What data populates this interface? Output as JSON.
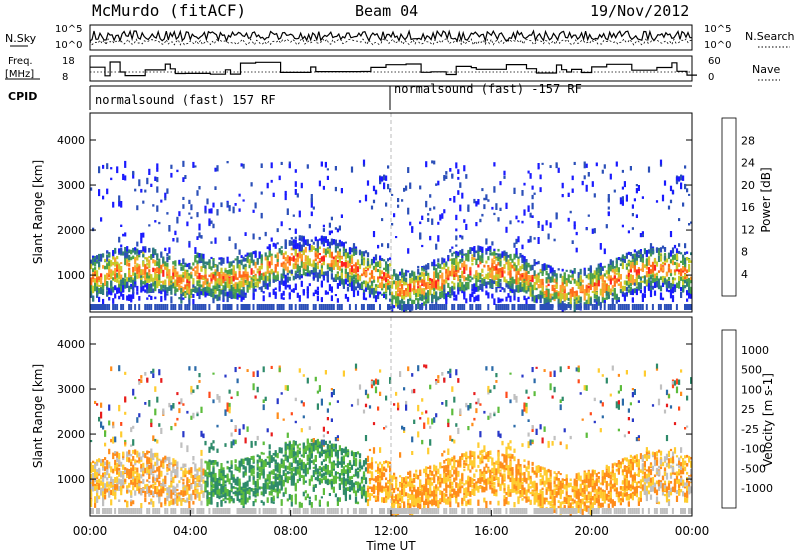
{
  "header": {
    "station": "McMurdo (fitACF)",
    "beam": "Beam 04",
    "date": "19/Nov/2012"
  },
  "noise_panel": {
    "left_label": "N.Sky",
    "right_label": "N.Search",
    "left_ticks": [
      "10^5",
      "10^0"
    ],
    "right_ticks": [
      "10^5",
      "10^0"
    ]
  },
  "freq_panel": {
    "left_label_1": "Freq.",
    "left_label_2": "[MHz]",
    "right_label": "Nave",
    "left_ticks": [
      "18",
      "8"
    ],
    "right_ticks": [
      "60",
      "0"
    ]
  },
  "cpid": {
    "label": "CPID",
    "segments": [
      "normalsound (fast) 157 RF",
      "normalsound (fast) -157 RF"
    ]
  },
  "chart_data": [
    {
      "type": "heatmap",
      "name": "power",
      "ylabel": "Slant Range [km]",
      "xlabel": "",
      "xlim": [
        0,
        24
      ],
      "ylim": [
        180,
        4600
      ],
      "yticks": [
        "1000",
        "2000",
        "3000",
        "4000"
      ],
      "colorbar": {
        "label": "Power [dB]",
        "ticks": [
          "4",
          "8",
          "12",
          "16",
          "20",
          "24",
          "28"
        ],
        "colors": [
          "#1a1aff",
          "#2b4fb8",
          "#2f7d7a",
          "#4aa14a",
          "#c8cc2a",
          "#ffa030",
          "#ff6a1a",
          "#ff2020"
        ]
      }
    },
    {
      "type": "heatmap",
      "name": "velocity",
      "ylabel": "Slant Range [km]",
      "xlabel": "Time UT",
      "xlim": [
        0,
        24
      ],
      "ylim": [
        180,
        4600
      ],
      "yticks": [
        "1000",
        "2000",
        "3000",
        "4000"
      ],
      "xticks": [
        "00:00",
        "04:00",
        "08:00",
        "12:00",
        "16:00",
        "20:00",
        "00:00"
      ],
      "colorbar": {
        "label": "Velocity [m s-1]",
        "ticks": [
          "1000",
          "500",
          "100",
          "25",
          "-25",
          "-100",
          "-500",
          "-1000"
        ],
        "colors": [
          "#2838c8",
          "#2a6aa8",
          "#2e8a6a",
          "#5cbc3c",
          "#c0c0c0",
          "#ffcc30",
          "#ff8c1a",
          "#ff4a1a",
          "#e81c1c"
        ]
      }
    }
  ]
}
